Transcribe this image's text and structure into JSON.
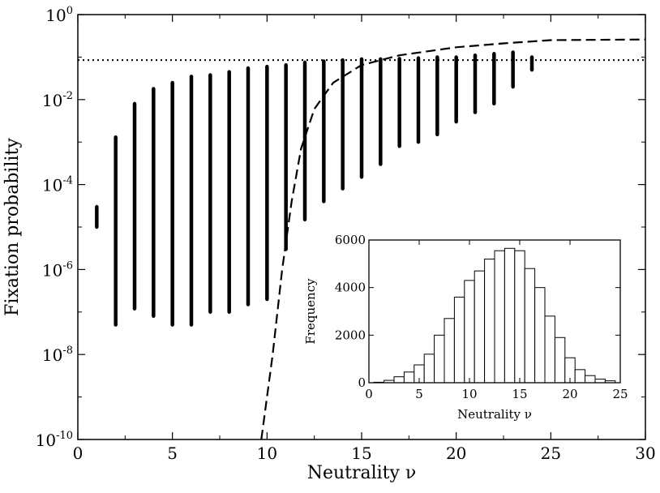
{
  "chart_data": [
    {
      "type": "scatter",
      "xlabel": "Neutrality ν",
      "ylabel": "Fixation probability",
      "xlim": [
        0,
        30
      ],
      "ylim": [
        1e-10,
        1
      ],
      "yscale": "log",
      "xticks": [
        0,
        5,
        10,
        15,
        20,
        25,
        30
      ],
      "yticks": [
        {
          "base": "10",
          "exp": "0",
          "value": 1
        },
        {
          "base": "10",
          "exp": "-2",
          "value": 0.01
        },
        {
          "base": "10",
          "exp": "-4",
          "value": 0.0001
        },
        {
          "base": "10",
          "exp": "-6",
          "value": 1e-06
        },
        {
          "base": "10",
          "exp": "-8",
          "value": 1e-08
        },
        {
          "base": "10",
          "exp": "-10",
          "value": 1e-10
        }
      ],
      "scatter_ranges": [
        {
          "nu": 1,
          "min": 1e-05,
          "max": 3e-05
        },
        {
          "nu": 2,
          "min": 5e-08,
          "max": 0.0013
        },
        {
          "nu": 3,
          "min": 1.2e-07,
          "max": 0.008
        },
        {
          "nu": 4,
          "min": 8e-08,
          "max": 0.018
        },
        {
          "nu": 5,
          "min": 5e-08,
          "max": 0.025
        },
        {
          "nu": 6,
          "min": 5e-08,
          "max": 0.035
        },
        {
          "nu": 7,
          "min": 1e-07,
          "max": 0.038
        },
        {
          "nu": 8,
          "min": 1e-07,
          "max": 0.045
        },
        {
          "nu": 9,
          "min": 1.5e-07,
          "max": 0.055
        },
        {
          "nu": 10,
          "min": 2e-07,
          "max": 0.06
        },
        {
          "nu": 11,
          "min": 3e-06,
          "max": 0.065
        },
        {
          "nu": 12,
          "min": 1.5e-05,
          "max": 0.075
        },
        {
          "nu": 13,
          "min": 4e-05,
          "max": 0.08
        },
        {
          "nu": 14,
          "min": 8e-05,
          "max": 0.085
        },
        {
          "nu": 15,
          "min": 0.00015,
          "max": 0.09
        },
        {
          "nu": 16,
          "min": 0.0003,
          "max": 0.09
        },
        {
          "nu": 17,
          "min": 0.0008,
          "max": 0.092
        },
        {
          "nu": 18,
          "min": 0.001,
          "max": 0.095
        },
        {
          "nu": 19,
          "min": 0.0015,
          "max": 0.1
        },
        {
          "nu": 20,
          "min": 0.003,
          "max": 0.1
        },
        {
          "nu": 21,
          "min": 0.005,
          "max": 0.11
        },
        {
          "nu": 22,
          "min": 0.008,
          "max": 0.12
        },
        {
          "nu": 23,
          "min": 0.02,
          "max": 0.13
        },
        {
          "nu": 24,
          "min": 0.05,
          "max": 0.1
        }
      ],
      "reference_line": {
        "style": "dotted",
        "y": 0.085
      },
      "curve": {
        "style": "dashed",
        "points": [
          [
            9.7,
            1e-10
          ],
          [
            10.3,
            1e-08
          ],
          [
            10.8,
            1e-06
          ],
          [
            11.3,
            4e-05
          ],
          [
            11.8,
            0.0007
          ],
          [
            12.5,
            0.006
          ],
          [
            13.5,
            0.025
          ],
          [
            15,
            0.065
          ],
          [
            17,
            0.11
          ],
          [
            20,
            0.17
          ],
          [
            22.5,
            0.21
          ],
          [
            25,
            0.25
          ],
          [
            30,
            0.26
          ]
        ]
      }
    },
    {
      "type": "bar",
      "subtype": "histogram",
      "xlabel": "Neutrality ν",
      "ylabel": "Frequency",
      "xlim": [
        0,
        25
      ],
      "ylim": [
        0,
        6000
      ],
      "xticks": [
        0,
        5,
        10,
        15,
        20,
        25
      ],
      "yticks": [
        0,
        2000,
        4000,
        6000
      ],
      "categories": [
        1,
        2,
        3,
        4,
        5,
        6,
        7,
        8,
        9,
        10,
        11,
        12,
        13,
        14,
        15,
        16,
        17,
        18,
        19,
        20,
        21,
        22,
        23,
        24
      ],
      "values": [
        20,
        100,
        250,
        450,
        750,
        1200,
        2000,
        2700,
        3600,
        4300,
        4700,
        5200,
        5550,
        5650,
        5550,
        4800,
        4000,
        2800,
        1900,
        1050,
        550,
        300,
        150,
        80
      ]
    }
  ]
}
